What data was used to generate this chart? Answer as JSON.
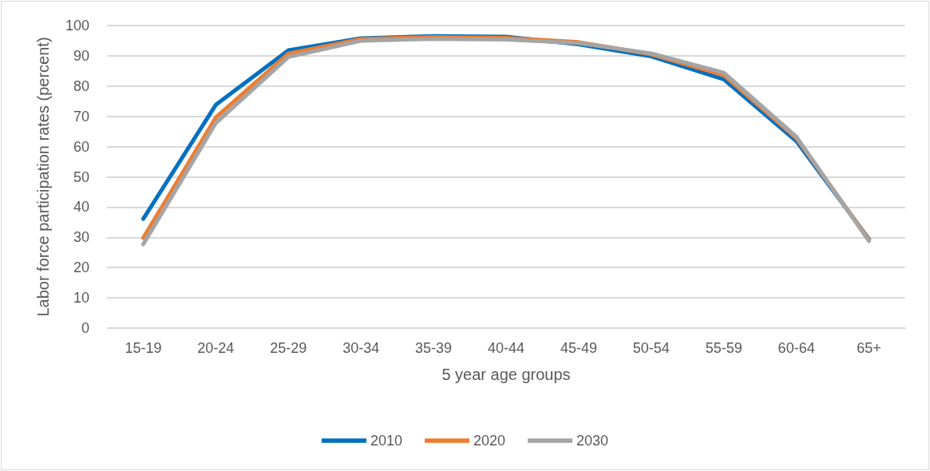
{
  "chart_data": {
    "type": "line",
    "xlabel": "5 year age groups",
    "ylabel": "Labor force participation rates (percent)",
    "categories": [
      "15-19",
      "20-24",
      "25-29",
      "30-34",
      "35-39",
      "40-44",
      "45-49",
      "50-54",
      "55-59",
      "60-64",
      "65+"
    ],
    "series": [
      {
        "name": "2010",
        "color": "#0070c0",
        "values": [
          36.1,
          73.8,
          91.8,
          95.8,
          96.5,
          96.3,
          93.8,
          89.8,
          82.2,
          61.8,
          29.4
        ]
      },
      {
        "name": "2020",
        "color": "#ed7d31",
        "values": [
          29.8,
          69.6,
          90.7,
          95.5,
          96.2,
          95.9,
          94.5,
          90.5,
          83.6,
          62.8,
          29.2
        ]
      },
      {
        "name": "2030",
        "color": "#a5a5a5",
        "values": [
          27.7,
          67.8,
          89.6,
          95.0,
          95.6,
          95.4,
          94.2,
          90.8,
          84.4,
          63.2,
          28.8
        ]
      }
    ],
    "ylim": [
      0,
      100
    ],
    "yticks": [
      0,
      10,
      20,
      30,
      40,
      50,
      60,
      70,
      80,
      90,
      100
    ],
    "grid": "y",
    "legend": "bottom",
    "marker": "none",
    "line_style": "solid"
  }
}
